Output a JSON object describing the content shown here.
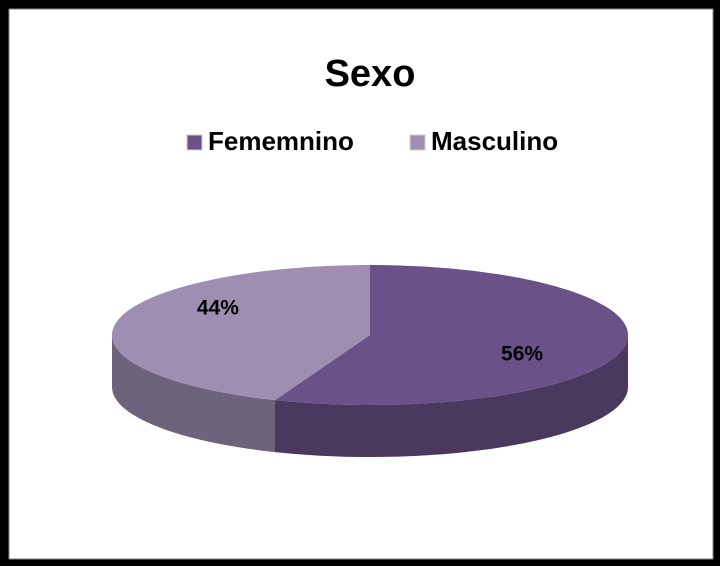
{
  "chart_data": {
    "type": "pie",
    "title": "Sexo",
    "categories": [
      "Fememnino",
      "Masculino"
    ],
    "values": [
      56,
      44
    ],
    "value_labels": [
      "56%",
      "44%"
    ],
    "colors": [
      "#6a5289",
      "#9e8fb2"
    ],
    "legend": "top"
  }
}
